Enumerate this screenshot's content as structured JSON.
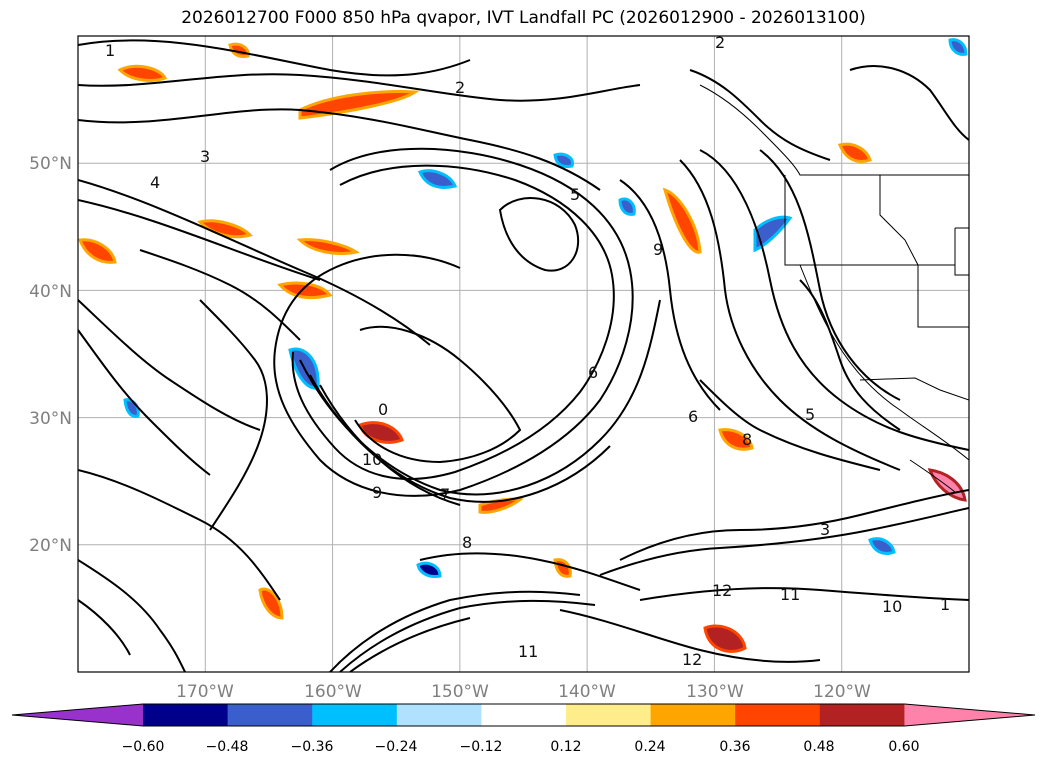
{
  "title": "2026012700 F000 850 hPa qvapor, IVT Landfall PC (2026012900 - 2026013100)",
  "map": {
    "lat_labels": [
      "50°N",
      "40°N",
      "30°N",
      "20°N"
    ],
    "lon_labels": [
      "170°W",
      "160°W",
      "150°W",
      "140°W",
      "130°W",
      "120°W"
    ],
    "lat_values": [
      50,
      40,
      30,
      20
    ],
    "lon_values": [
      -170,
      -160,
      -150,
      -140,
      -130,
      -120
    ],
    "extent": {
      "lon_min": -180,
      "lon_max": -110,
      "lat_min": 10,
      "lat_max": 60
    },
    "grid": true,
    "contour_labels": [
      "1",
      "2",
      "3",
      "4",
      "5",
      "6",
      "7",
      "8",
      "9",
      "10",
      "11",
      "12",
      "0",
      "2",
      "6",
      "3",
      "8",
      "10",
      "12",
      "11",
      "1",
      "9",
      "5"
    ]
  },
  "colorbar": {
    "ticks": [
      "−0.60",
      "−0.48",
      "−0.36",
      "−0.24",
      "−0.12",
      "0.12",
      "0.24",
      "0.36",
      "0.48",
      "0.60"
    ],
    "colors": [
      "#9932cc",
      "#00008b",
      "#3a5fcd",
      "#00bfff",
      "#b0e2ff",
      "#ffffff",
      "#ffec8b",
      "#ffa500",
      "#ff4500",
      "#b22222",
      "#ff82ab"
    ],
    "extend": "both"
  }
}
